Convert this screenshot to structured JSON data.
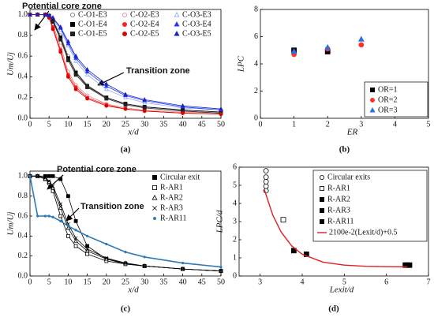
{
  "chart_data": [
    {
      "type": "line",
      "caption": "(a)",
      "xlabel": "x/d",
      "ylabel": "Um/Uj",
      "annotations": [
        "Potential core zone",
        "Transition zone"
      ],
      "xlim": [
        0,
        50
      ],
      "ylim": [
        0,
        1.05
      ],
      "xticks": [
        0,
        5,
        10,
        15,
        20,
        25,
        30,
        35,
        40,
        45,
        50
      ],
      "yticks": [
        {
          "value": 0,
          "label": "0.0"
        },
        {
          "value": 0.2,
          "label": "0.2"
        },
        {
          "value": 0.4,
          "label": "0.4"
        },
        {
          "value": 0.6,
          "label": "0.6"
        },
        {
          "value": 0.8,
          "label": "0.8"
        },
        {
          "value": 1,
          "label": "1.0"
        }
      ],
      "x": [
        0,
        2,
        4,
        5,
        6,
        8,
        10,
        12,
        15,
        20,
        25,
        30,
        40,
        50
      ],
      "series": [
        {
          "name": "C-O1-E3",
          "color": "#777777",
          "marker": "circle",
          "filled": false,
          "values": [
            1,
            1,
            1,
            0.99,
            0.95,
            0.8,
            0.6,
            0.45,
            0.32,
            0.2,
            0.14,
            0.11,
            0.08,
            0.06
          ]
        },
        {
          "name": "C-O2-E3",
          "color": "#f08080",
          "marker": "circle",
          "filled": false,
          "values": [
            1,
            1,
            1,
            0.98,
            0.9,
            0.7,
            0.45,
            0.32,
            0.22,
            0.14,
            0.1,
            0.08,
            0.06,
            0.05
          ]
        },
        {
          "name": "C-O3-E3",
          "color": "#8fa8ff",
          "marker": "triangle",
          "filled": false,
          "values": [
            1,
            1,
            1,
            0.99,
            0.96,
            0.85,
            0.7,
            0.55,
            0.42,
            0.28,
            0.2,
            0.15,
            0.1,
            0.08
          ]
        },
        {
          "name": "C-O1-E4",
          "color": "#000000",
          "marker": "square",
          "filled": true,
          "values": [
            1,
            1,
            1,
            0.99,
            0.94,
            0.78,
            0.58,
            0.44,
            0.31,
            0.2,
            0.14,
            0.11,
            0.08,
            0.06
          ]
        },
        {
          "name": "C-O2-E4",
          "color": "#ff2020",
          "marker": "circle",
          "filled": true,
          "values": [
            1,
            1,
            1,
            0.98,
            0.88,
            0.66,
            0.42,
            0.3,
            0.2,
            0.13,
            0.09,
            0.07,
            0.05,
            0.04
          ]
        },
        {
          "name": "C-O3-E4",
          "color": "#1a3cff",
          "marker": "triangle",
          "filled": true,
          "values": [
            1,
            1,
            1,
            0.99,
            0.97,
            0.87,
            0.72,
            0.58,
            0.45,
            0.31,
            0.22,
            0.17,
            0.11,
            0.08
          ]
        },
        {
          "name": "C-O1-E5",
          "color": "#222222",
          "marker": "square",
          "filled": true,
          "values": [
            1,
            1,
            1,
            0.99,
            0.93,
            0.76,
            0.56,
            0.42,
            0.3,
            0.19,
            0.13,
            0.1,
            0.07,
            0.05
          ]
        },
        {
          "name": "C-O2-E5",
          "color": "#dd0000",
          "marker": "circle",
          "filled": true,
          "values": [
            1,
            1,
            1,
            0.97,
            0.86,
            0.64,
            0.4,
            0.28,
            0.19,
            0.12,
            0.09,
            0.07,
            0.05,
            0.04
          ]
        },
        {
          "name": "C-O3-E5",
          "color": "#2020c0",
          "marker": "triangle",
          "filled": true,
          "values": [
            1,
            1,
            1,
            0.99,
            0.97,
            0.88,
            0.74,
            0.6,
            0.47,
            0.33,
            0.23,
            0.18,
            0.12,
            0.09
          ]
        }
      ]
    },
    {
      "type": "scatter",
      "caption": "(b)",
      "xlabel": "ER",
      "ylabel": "LPC",
      "xlim": [
        0,
        5
      ],
      "ylim": [
        0,
        8
      ],
      "xticks": [
        0,
        1,
        2,
        3,
        4,
        5
      ],
      "yticks": [
        0,
        2,
        4,
        6,
        8
      ],
      "series": [
        {
          "name": "OR=1",
          "color": "#000000",
          "marker": "square",
          "filled": true,
          "x": [
            1,
            2
          ],
          "values": [
            5.0,
            4.9
          ]
        },
        {
          "name": "OR=2",
          "color": "#ff3030",
          "marker": "circle",
          "filled": true,
          "x": [
            1,
            2,
            3
          ],
          "values": [
            4.7,
            5.1,
            5.4
          ]
        },
        {
          "name": "OR=3",
          "color": "#2a70e0",
          "marker": "triangle",
          "filled": true,
          "x": [
            1,
            2,
            3
          ],
          "values": [
            4.9,
            5.2,
            5.8
          ]
        }
      ]
    },
    {
      "type": "line",
      "caption": "(c)",
      "xlabel": "x/d",
      "ylabel": "Um/Uj",
      "annotations": [
        "Potential core zone",
        "Transition zone"
      ],
      "xlim": [
        0,
        50
      ],
      "ylim": [
        0,
        1.05
      ],
      "xticks": [
        0,
        5,
        10,
        15,
        20,
        25,
        30,
        35,
        40,
        45,
        50
      ],
      "yticks": [
        {
          "value": 0,
          "label": "0.0"
        },
        {
          "value": 0.2,
          "label": "0.2"
        },
        {
          "value": 0.4,
          "label": "0.4"
        },
        {
          "value": 0.6,
          "label": "0.6"
        },
        {
          "value": 0.8,
          "label": "0.8"
        },
        {
          "value": 1,
          "label": "1.0"
        }
      ],
      "x": [
        0,
        2,
        4,
        5,
        6,
        8,
        10,
        12,
        15,
        20,
        25,
        30,
        40,
        50
      ],
      "series": [
        {
          "name": "Circular exit",
          "color": "#000000",
          "marker": "square",
          "filled": true,
          "values": [
            1,
            1,
            1,
            1,
            1,
            0.97,
            0.8,
            0.55,
            0.3,
            0.17,
            0.12,
            0.1,
            0.07,
            0.05
          ]
        },
        {
          "name": "R-AR1",
          "color": "#000000",
          "marker": "square",
          "filled": false,
          "values": [
            1,
            1,
            0.97,
            0.93,
            0.85,
            0.6,
            0.4,
            0.3,
            0.22,
            0.15,
            0.12,
            0.1,
            0.07,
            0.05
          ]
        },
        {
          "name": "R-AR2",
          "color": "#000000",
          "marker": "triangle",
          "filled": false,
          "values": [
            1,
            1,
            0.97,
            0.94,
            0.88,
            0.68,
            0.48,
            0.35,
            0.25,
            0.17,
            0.13,
            0.1,
            0.07,
            0.05
          ]
        },
        {
          "name": "R-AR3",
          "color": "#000000",
          "marker": "cross",
          "filled": false,
          "values": [
            1,
            1,
            0.98,
            0.95,
            0.9,
            0.72,
            0.52,
            0.38,
            0.27,
            0.18,
            0.13,
            0.1,
            0.07,
            0.05
          ]
        },
        {
          "name": "R-AR11",
          "color": "#2a7ab8",
          "marker": "dot",
          "filled": true,
          "values": [
            1,
            0.6,
            0.6,
            0.6,
            0.59,
            0.55,
            0.5,
            0.46,
            0.4,
            0.32,
            0.24,
            0.19,
            0.13,
            0.09
          ]
        }
      ]
    },
    {
      "type": "scatter",
      "caption": "(d)",
      "xlabel": "Lexit/d",
      "ylabel": "LPC/d",
      "xlim": [
        2.5,
        7
      ],
      "ylim": [
        0,
        6
      ],
      "xticks": [
        3,
        4,
        5,
        6,
        7
      ],
      "yticks": [
        0,
        1,
        2,
        3,
        4,
        5,
        6
      ],
      "series": [
        {
          "name": "Circular exits",
          "color": "#000000",
          "marker": "circle",
          "filled": false,
          "x": [
            3.14,
            3.14,
            3.14,
            3.14,
            3.14
          ],
          "values": [
            4.7,
            4.95,
            5.2,
            5.45,
            5.8
          ]
        },
        {
          "name": "R-AR1",
          "color": "#000000",
          "marker": "square",
          "filled": false,
          "x": [
            3.55
          ],
          "values": [
            3.1
          ]
        },
        {
          "name": "R-AR2",
          "color": "#000000",
          "marker": "square",
          "filled": true,
          "x": [
            3.8
          ],
          "values": [
            1.4
          ]
        },
        {
          "name": "R-AR3",
          "color": "#000000",
          "marker": "square",
          "filled": true,
          "x": [
            4.1
          ],
          "values": [
            1.2
          ]
        },
        {
          "name": "R-AR11",
          "color": "#000000",
          "marker": "square",
          "filled": true,
          "x": [
            6.45,
            6.5,
            6.55
          ],
          "values": [
            0.6,
            0.6,
            0.6
          ]
        }
      ],
      "fit": {
        "name": "2100e-2(Lexit/d)+0.5",
        "color": "#e02020",
        "x": [
          3.1,
          3.3,
          3.5,
          3.75,
          4,
          4.5,
          5,
          5.5,
          6,
          6.5
        ],
        "values": [
          4.76,
          3.36,
          2.42,
          1.66,
          1.2,
          0.76,
          0.6,
          0.535,
          0.513,
          0.505
        ]
      }
    }
  ]
}
